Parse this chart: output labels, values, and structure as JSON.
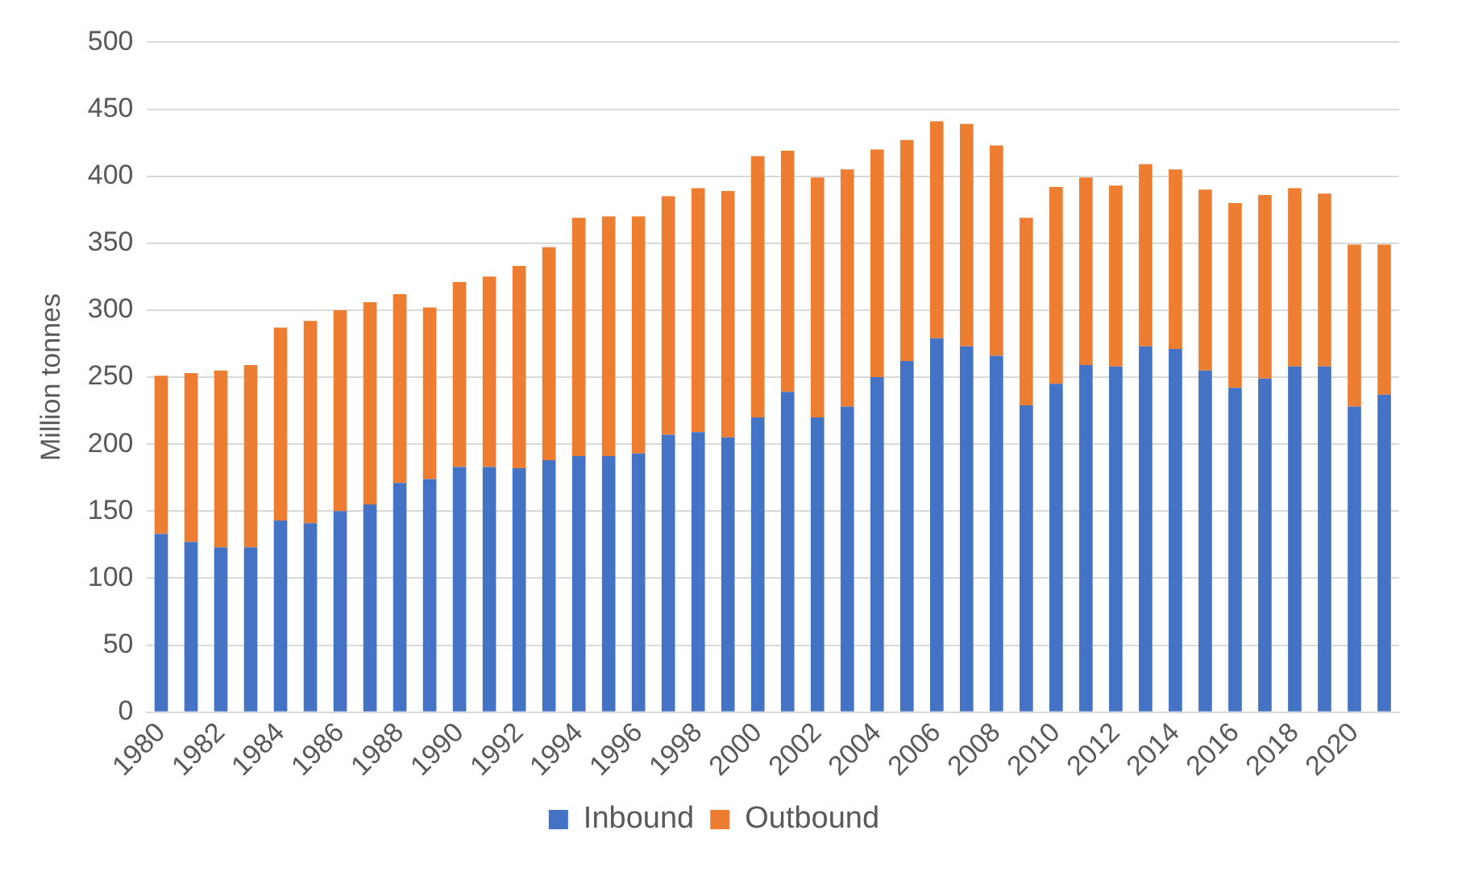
{
  "chart_data": {
    "type": "bar",
    "stacked": true,
    "ylabel": "Million tonnes",
    "categories": [
      "1980",
      null,
      "1982",
      null,
      "1984",
      null,
      "1986",
      null,
      "1988",
      null,
      "1990",
      null,
      "1992",
      null,
      "1994",
      null,
      "1996",
      null,
      "1998",
      null,
      "2000",
      null,
      "2002",
      null,
      "2004",
      null,
      "2006",
      null,
      "2008",
      null,
      "2010",
      null,
      "2012",
      null,
      "2014",
      null,
      "2016",
      null,
      "2018",
      null,
      "2020",
      null
    ],
    "series": [
      {
        "name": "Inbound",
        "color": "#4472c4",
        "values": [
          133,
          127,
          123,
          123,
          143,
          141,
          150,
          155,
          171,
          174,
          183,
          183,
          182,
          188,
          191,
          191,
          193,
          207,
          209,
          205,
          220,
          239,
          220,
          228,
          250,
          262,
          279,
          273,
          266,
          229,
          245,
          259,
          258,
          273,
          271,
          255,
          242,
          249,
          258,
          258,
          228,
          237
        ]
      },
      {
        "name": "Outbound",
        "color": "#ed7d31",
        "values": [
          118,
          126,
          132,
          136,
          144,
          151,
          150,
          151,
          141,
          128,
          138,
          142,
          151,
          159,
          178,
          179,
          177,
          178,
          182,
          184,
          195,
          180,
          179,
          177,
          170,
          165,
          162,
          166,
          157,
          140,
          147,
          140,
          135,
          136,
          134,
          135,
          138,
          137,
          133,
          129,
          121,
          112
        ]
      }
    ],
    "ylim": [
      0,
      500
    ],
    "yticks": [
      0,
      50,
      100,
      150,
      200,
      250,
      300,
      350,
      400,
      450,
      500
    ],
    "grid": "y",
    "legend": "bottom"
  }
}
